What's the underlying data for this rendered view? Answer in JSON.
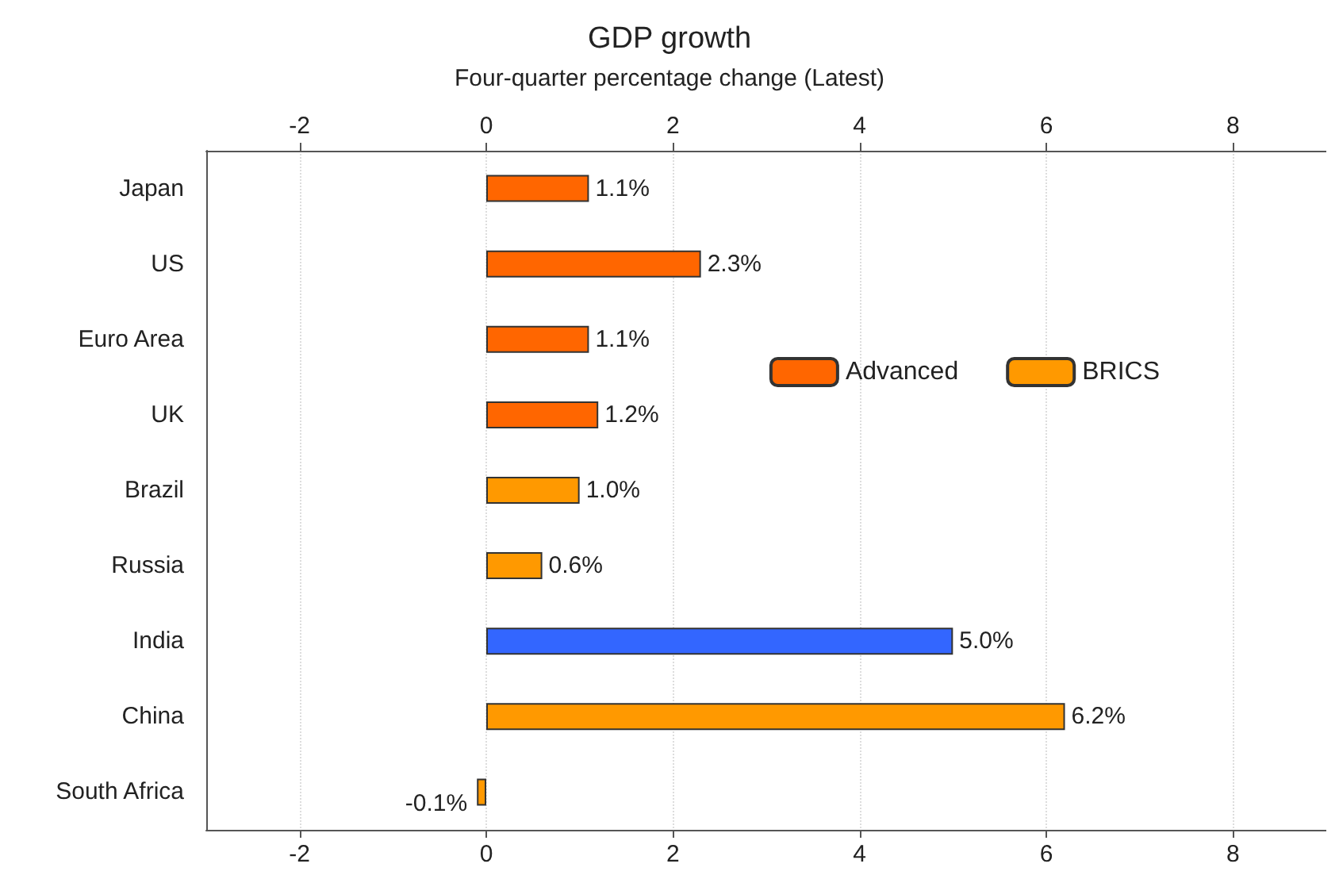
{
  "chart_data": {
    "type": "bar",
    "orientation": "horizontal",
    "stacked": true,
    "title": "GDP growth",
    "subtitle": "Four-quarter percentage change (Latest)",
    "categories": [
      "Japan",
      "US",
      "Euro Area",
      "UK",
      "Brazil",
      "Russia",
      "India",
      "China",
      "South Africa"
    ],
    "series": [
      {
        "name": "Advanced",
        "color": "#ff6600",
        "values": [
          1.1,
          2.3,
          1.1,
          1.2,
          null,
          null,
          null,
          null,
          null
        ],
        "value_labels": [
          "1.1%",
          "2.3%",
          "1.1%",
          "1.2%",
          null,
          null,
          null,
          null,
          null
        ]
      },
      {
        "name": "BRICS",
        "color": "#ff9900",
        "colors": [
          "#ff9900",
          "#ff9900",
          "#ff9900",
          "#ff9900",
          "#ff9900",
          "#ff9900",
          "#3366ff",
          "#ff9900",
          "#ff9900"
        ],
        "values": [
          null,
          null,
          null,
          null,
          1.0,
          0.6,
          5.0,
          6.2,
          -0.1
        ],
        "value_labels": [
          null,
          null,
          null,
          null,
          "1.0%",
          "0.6%",
          "5.0%",
          "6.2%",
          "-0.1%"
        ]
      }
    ],
    "xlim": [
      -3,
      9
    ],
    "xticks": [
      -2,
      0,
      2,
      4,
      6,
      8
    ],
    "x2lim": [
      -3,
      9
    ],
    "x2ticks": [
      -2,
      0,
      2,
      4,
      6,
      8
    ],
    "grid": "x",
    "legend": "right"
  }
}
